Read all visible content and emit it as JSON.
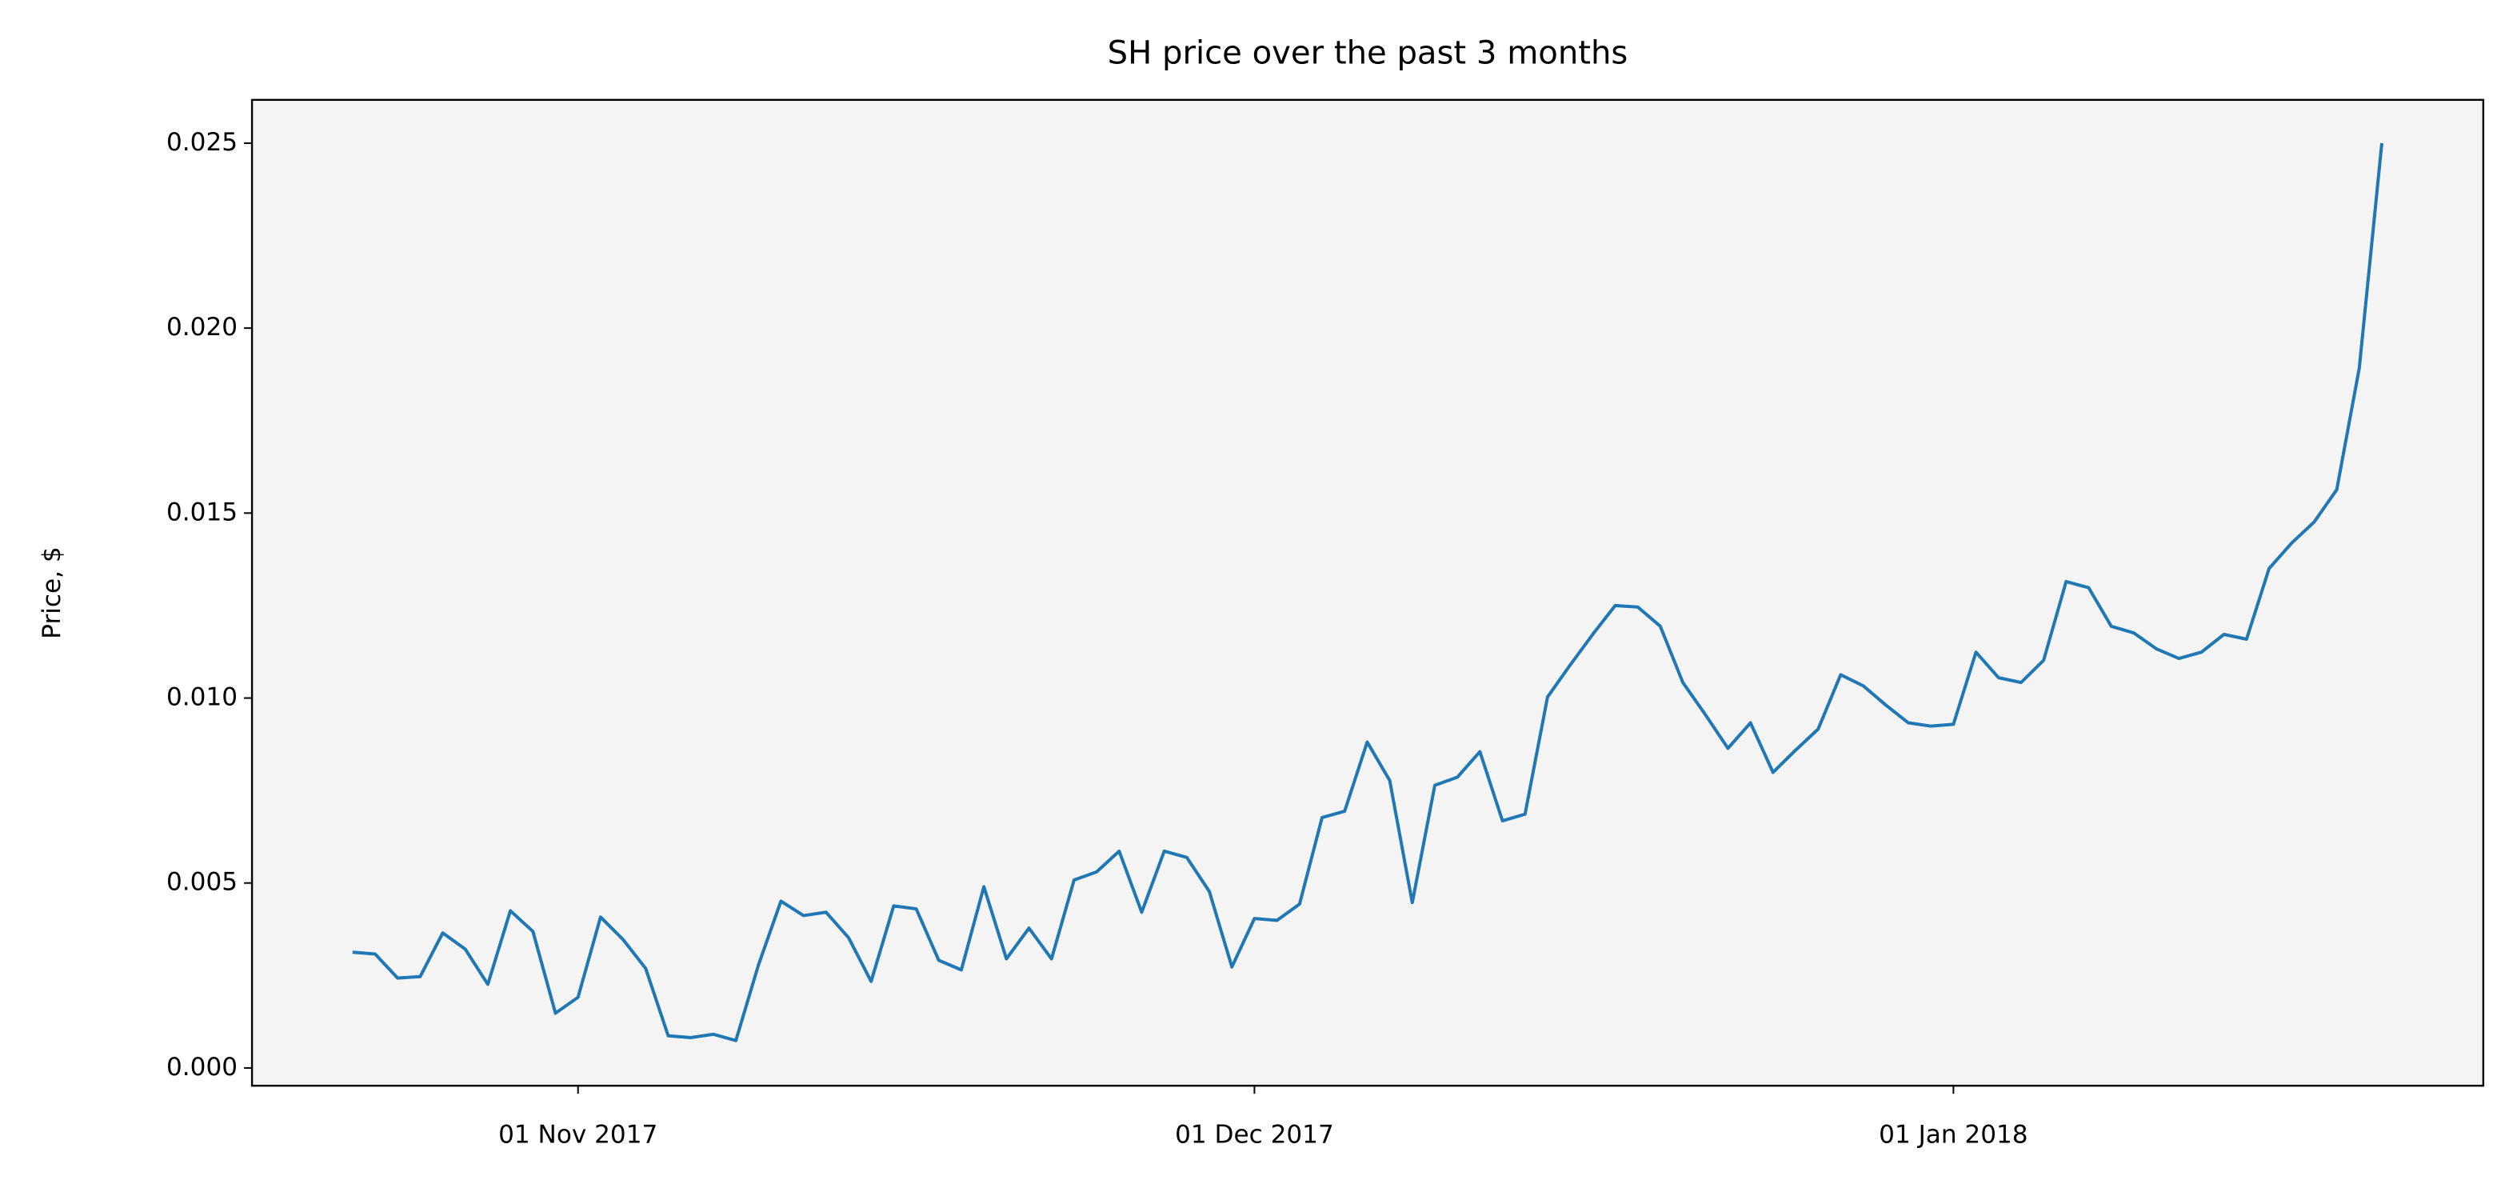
{
  "chart_data": {
    "type": "line",
    "title": "SH price over the past 3 months",
    "y_label": "Price, $",
    "x": [
      "2017-10-22",
      "2017-10-23",
      "2017-10-24",
      "2017-10-25",
      "2017-10-26",
      "2017-10-27",
      "2017-10-28",
      "2017-10-29",
      "2017-10-30",
      "2017-10-31",
      "2017-11-01",
      "2017-11-02",
      "2017-11-03",
      "2017-11-04",
      "2017-11-05",
      "2017-11-06",
      "2017-11-07",
      "2017-11-08",
      "2017-11-09",
      "2017-11-10",
      "2017-11-11",
      "2017-11-12",
      "2017-11-13",
      "2017-11-14",
      "2017-11-15",
      "2017-11-16",
      "2017-11-17",
      "2017-11-18",
      "2017-11-19",
      "2017-11-20",
      "2017-11-21",
      "2017-11-22",
      "2017-11-23",
      "2017-11-24",
      "2017-11-25",
      "2017-11-26",
      "2017-11-27",
      "2017-11-28",
      "2017-11-29",
      "2017-11-30",
      "2017-12-01",
      "2017-12-02",
      "2017-12-03",
      "2017-12-04",
      "2017-12-05",
      "2017-12-06",
      "2017-12-07",
      "2017-12-08",
      "2017-12-09",
      "2017-12-10",
      "2017-12-11",
      "2017-12-12",
      "2017-12-13",
      "2017-12-14",
      "2017-12-15",
      "2017-12-16",
      "2017-12-17",
      "2017-12-18",
      "2017-12-19",
      "2017-12-20",
      "2017-12-21",
      "2017-12-22",
      "2017-12-23",
      "2017-12-24",
      "2017-12-25",
      "2017-12-26",
      "2017-12-27",
      "2017-12-28",
      "2017-12-29",
      "2017-12-30",
      "2017-12-31",
      "2018-01-01",
      "2018-01-02",
      "2018-01-03",
      "2018-01-04",
      "2018-01-05",
      "2018-01-06",
      "2018-01-07",
      "2018-01-08",
      "2018-01-09",
      "2018-01-10",
      "2018-01-11",
      "2018-01-12",
      "2018-01-13",
      "2018-01-14",
      "2018-01-15",
      "2018-01-16",
      "2018-01-17",
      "2018-01-18",
      "2018-01-19",
      "2018-01-20"
    ],
    "series": [
      {
        "color": "#1f77b4",
        "values": [
          0.00313,
          0.00308,
          0.00243,
          0.00247,
          0.00365,
          0.00321,
          0.00226,
          0.00425,
          0.00369,
          0.00148,
          0.00191,
          0.00408,
          0.00347,
          0.00269,
          0.00087,
          0.00082,
          0.00091,
          0.00074,
          0.00278,
          0.00451,
          0.00412,
          0.00421,
          0.00352,
          0.00234,
          0.00438,
          0.0043,
          0.00291,
          0.00265,
          0.0049,
          0.00295,
          0.00378,
          0.00295,
          0.00508,
          0.0053,
          0.00586,
          0.00421,
          0.00586,
          0.00569,
          0.00477,
          0.00273,
          0.00404,
          0.00399,
          0.00443,
          0.00677,
          0.00694,
          0.00881,
          0.00777,
          0.00447,
          0.00764,
          0.00786,
          0.00855,
          0.00668,
          0.00686,
          0.01003,
          0.01089,
          0.01172,
          0.0125,
          0.01246,
          0.01194,
          0.01042,
          0.00955,
          0.00864,
          0.00933,
          0.00799,
          0.00859,
          0.00916,
          0.01063,
          0.01033,
          0.00981,
          0.00933,
          0.00924,
          0.00929,
          0.01124,
          0.01055,
          0.01042,
          0.01102,
          0.01315,
          0.01298,
          0.01194,
          0.01176,
          0.01133,
          0.01107,
          0.01124,
          0.01172,
          0.01159,
          0.0135,
          0.01419,
          0.01476,
          0.01563,
          0.01892,
          0.025
        ]
      }
    ],
    "xlim": [
      "2017-10-17T13:00:00Z",
      "2018-01-24T12:00:00Z"
    ],
    "xticks": [
      {
        "value": "2017-11-01",
        "label": "01 Nov 2017"
      },
      {
        "value": "2017-12-01",
        "label": "01 Dec 2017"
      },
      {
        "value": "2018-01-01",
        "label": "01 Jan 2018"
      }
    ],
    "ylim": [
      -0.00048,
      0.02617
    ],
    "yticks": [
      {
        "value": 0,
        "label": "0.000"
      },
      {
        "value": 0.005,
        "label": "0.005"
      },
      {
        "value": 0.01,
        "label": "0.010"
      },
      {
        "value": 0.015,
        "label": "0.015"
      },
      {
        "value": 0.02,
        "label": "0.020"
      },
      {
        "value": 0.025,
        "label": "0.025"
      }
    ],
    "background": "#f4f4f5",
    "grid": false
  }
}
